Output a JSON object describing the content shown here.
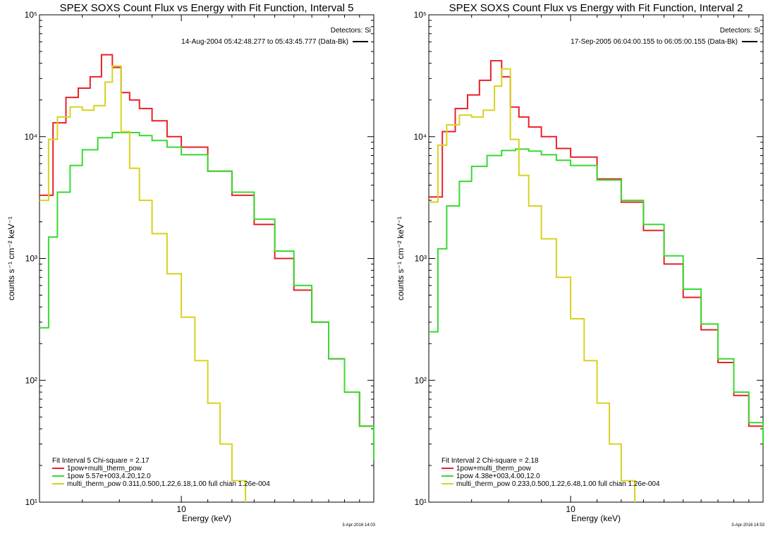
{
  "chart_data": [
    {
      "type": "line",
      "title": "SPEX SOXS Count Flux vs Energy with Fit Function, Interval 5",
      "detectors_label": "Detectors: Si",
      "time_range_label": "14-Aug-2004 05:42:48.277 to 05:43:45.777 (Data-Bk)",
      "xlabel": "Energy (keV)",
      "ylabel": "counts s⁻¹ cm⁻² keV⁻¹",
      "x_scale": "log",
      "y_scale": "log",
      "xlim": [
        6.0,
        20.0
      ],
      "ylim": [
        10,
        100000
      ],
      "x_tick_labels": [
        "10"
      ],
      "y_tick_labels": [
        "10¹",
        "10²",
        "10³",
        "10⁴",
        "10⁵"
      ],
      "fit_header": "Fit Interval 5   Chi-square = 2.17",
      "legend_position": "bottom-left",
      "timestamp": "3-Apr-2016 14:03",
      "series": [
        {
          "name": "1pow+multi_therm_pow",
          "color": "#e8212a",
          "x": [
            6.0,
            6.3,
            6.6,
            6.9,
            7.2,
            7.5,
            7.8,
            8.05,
            8.3,
            8.6,
            9.0,
            9.5,
            10.0,
            11.0,
            12.0,
            13.0,
            14.0,
            15.0,
            16.0,
            17.0,
            18.0,
            19.0,
            20.0
          ],
          "values": [
            3300,
            13000,
            21000,
            25000,
            31000,
            47000,
            37000,
            23000,
            20000,
            17000,
            13500,
            10000,
            8200,
            5200,
            3300,
            1900,
            1000,
            550,
            300,
            150,
            80,
            42,
            22
          ]
        },
        {
          "name": "1pow 5.57e+003,4.20,12.0",
          "color": "#39d931",
          "x": [
            6.0,
            6.2,
            6.4,
            6.7,
            7.0,
            7.4,
            7.8,
            8.2,
            8.6,
            9.0,
            9.5,
            10.0,
            11.0,
            12.0,
            13.0,
            14.0,
            15.0,
            16.0,
            17.0,
            18.0,
            19.0,
            20.0
          ],
          "values": [
            270,
            1500,
            3500,
            5800,
            7800,
            9800,
            10800,
            10800,
            10200,
            9300,
            8200,
            7100,
            5200,
            3500,
            2100,
            1150,
            600,
            300,
            150,
            80,
            42,
            22
          ]
        },
        {
          "name": "multi_therm_pow 0.311,0.500,1.22,6.18,1.00  full chian 1.26e-004",
          "color": "#d8d21f",
          "x": [
            6.0,
            6.2,
            6.4,
            6.7,
            7.0,
            7.3,
            7.6,
            7.8,
            8.05,
            8.3,
            8.6,
            9.0,
            9.5,
            10.0,
            10.5,
            11.0,
            11.5,
            12.0,
            12.6
          ],
          "values": [
            3000,
            9500,
            14500,
            17500,
            16500,
            18000,
            28000,
            38000,
            11000,
            5500,
            3000,
            1600,
            750,
            330,
            145,
            65,
            30,
            15,
            10
          ]
        }
      ]
    },
    {
      "type": "line",
      "title": "SPEX SOXS Count Flux vs Energy with Fit Function, Interval 2",
      "detectors_label": "Detectors: Si",
      "time_range_label": "17-Sep-2005 06:04:00.155 to 06:05:00.155 (Data-Bk)",
      "xlabel": "Energy (keV)",
      "ylabel": "counts s⁻¹ cm⁻² keV⁻¹",
      "x_scale": "log",
      "y_scale": "log",
      "xlim": [
        6.0,
        20.0
      ],
      "ylim": [
        10,
        100000
      ],
      "x_tick_labels": [
        "10"
      ],
      "y_tick_labels": [
        "10¹",
        "10²",
        "10³",
        "10⁴",
        "10⁵"
      ],
      "fit_header": "Fit Interval 2   Chi-square = 2.18",
      "legend_position": "bottom-left",
      "timestamp": "3-Apr-2016 14:53",
      "series": [
        {
          "name": "1pow+multi_therm_pow",
          "color": "#e8212a",
          "x": [
            6.0,
            6.3,
            6.6,
            6.9,
            7.2,
            7.5,
            7.8,
            8.05,
            8.3,
            8.6,
            9.0,
            9.5,
            10.0,
            11.0,
            12.0,
            13.0,
            14.0,
            15.0,
            16.0,
            17.0,
            18.0,
            19.0,
            20.0
          ],
          "values": [
            3200,
            11000,
            17000,
            22000,
            29000,
            42000,
            31000,
            17500,
            14500,
            12000,
            10000,
            8000,
            6800,
            4500,
            2900,
            1700,
            900,
            480,
            260,
            140,
            75,
            42,
            30
          ]
        },
        {
          "name": "1pow 4.38e+003,4.00,12.0",
          "color": "#39d931",
          "x": [
            6.0,
            6.2,
            6.4,
            6.7,
            7.0,
            7.4,
            7.8,
            8.2,
            8.6,
            9.0,
            9.5,
            10.0,
            11.0,
            12.0,
            13.0,
            14.0,
            15.0,
            16.0,
            17.0,
            18.0,
            19.0,
            20.0
          ],
          "values": [
            250,
            1200,
            2700,
            4300,
            5700,
            7000,
            7700,
            7900,
            7600,
            7100,
            6400,
            5800,
            4400,
            3000,
            1900,
            1050,
            560,
            290,
            150,
            80,
            45,
            30
          ]
        },
        {
          "name": "multi_therm_pow 0.233,0.500,1.22,6.48,1.00  full chian 1.26e-004",
          "color": "#d8d21f",
          "x": [
            6.0,
            6.2,
            6.4,
            6.7,
            7.0,
            7.3,
            7.6,
            7.8,
            8.05,
            8.3,
            8.6,
            9.0,
            9.5,
            10.0,
            10.5,
            11.0,
            11.5,
            12.0,
            12.6
          ],
          "values": [
            2900,
            8500,
            12500,
            15000,
            14500,
            16500,
            26000,
            36000,
            9500,
            4800,
            2700,
            1450,
            700,
            320,
            145,
            65,
            30,
            15,
            10
          ]
        }
      ]
    }
  ]
}
